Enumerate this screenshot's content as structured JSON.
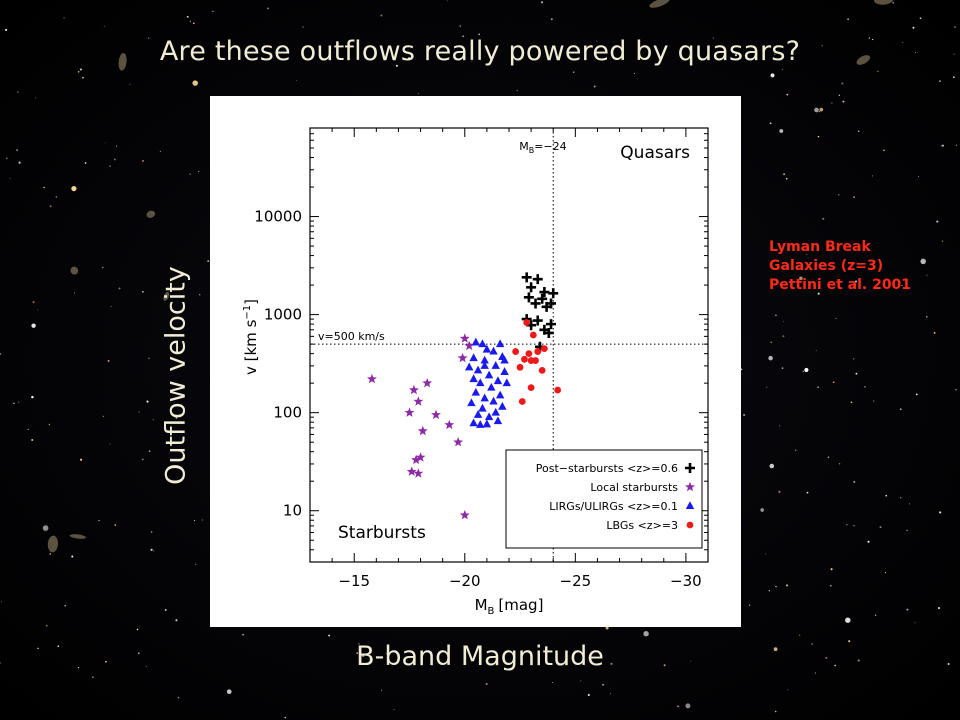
{
  "slide": {
    "title": "Are these outflows really powered by quasars?",
    "y_label": "Outflow velocity",
    "x_label": "B-band Magnitude",
    "note_lines": [
      "Lyman Break",
      "Galaxies (z=3)",
      "Pettini et al. 2001"
    ],
    "note_color": "#ff2a1a",
    "text_color": "#f1ecd5"
  },
  "chart_data": {
    "type": "scatter",
    "xlabel": "M",
    "xlabel_sub": "B",
    "xlabel_unit": "[mag]",
    "ylabel": "v [km s",
    "ylabel_sup": "−1",
    "ylabel_close": "]",
    "xlim": [
      -13,
      -31
    ],
    "ylim": [
      3,
      80000
    ],
    "y_scale": "log",
    "x_ticks": [
      -15,
      -20,
      -25,
      -30
    ],
    "x_tick_labels": [
      "−15",
      "−20",
      "−25",
      "−30"
    ],
    "y_ticks": [
      10,
      100,
      1000,
      10000
    ],
    "y_tick_labels": [
      "10",
      "100",
      "1000",
      "10000"
    ],
    "reference_lines": {
      "vertical": {
        "x": -24,
        "label": "M",
        "label_sub": "B",
        "label_rest": "=−24"
      },
      "horizontal": {
        "y": 500,
        "label": "v=500 km/s"
      }
    },
    "region_labels": [
      "Quasars",
      "Starbursts"
    ],
    "legend_position": "bottom-right",
    "series": [
      {
        "name": "Post−starbursts <z>=0.6",
        "marker": "plus",
        "color": "#000000",
        "points": [
          [
            -22.8,
            2400
          ],
          [
            -23.3,
            2300
          ],
          [
            -23.0,
            1900
          ],
          [
            -23.6,
            1700
          ],
          [
            -24.0,
            1650
          ],
          [
            -22.9,
            1500
          ],
          [
            -23.5,
            1450
          ],
          [
            -23.2,
            1300
          ],
          [
            -23.9,
            1300
          ],
          [
            -23.7,
            1200
          ],
          [
            -22.8,
            900
          ],
          [
            -23.3,
            870
          ],
          [
            -23.9,
            800
          ],
          [
            -23.0,
            780
          ],
          [
            -23.6,
            700
          ],
          [
            -23.8,
            650
          ],
          [
            -23.4,
            470
          ]
        ]
      },
      {
        "name": "Local starbursts",
        "marker": "star",
        "color": "#8e2aa6",
        "points": [
          [
            -15.8,
            220
          ],
          [
            -17.7,
            170
          ],
          [
            -18.3,
            200
          ],
          [
            -17.9,
            130
          ],
          [
            -17.5,
            100
          ],
          [
            -18.7,
            95
          ],
          [
            -19.3,
            75
          ],
          [
            -18.1,
            65
          ],
          [
            -19.7,
            50
          ],
          [
            -18.0,
            35
          ],
          [
            -17.8,
            33
          ],
          [
            -17.6,
            25
          ],
          [
            -17.9,
            24
          ],
          [
            -20.0,
            570
          ],
          [
            -19.9,
            360
          ],
          [
            -20.2,
            480
          ],
          [
            -20.0,
            9
          ]
        ]
      },
      {
        "name": "LIRGs/ULIRGs <z>=0.1",
        "marker": "triangle",
        "color": "#1a1aee",
        "points": [
          [
            -20.5,
            520
          ],
          [
            -20.8,
            500
          ],
          [
            -21.6,
            500
          ],
          [
            -21.3,
            420
          ],
          [
            -21.0,
            440
          ],
          [
            -20.4,
            360
          ],
          [
            -21.7,
            370
          ],
          [
            -20.9,
            340
          ],
          [
            -21.4,
            300
          ],
          [
            -20.2,
            290
          ],
          [
            -20.6,
            270
          ],
          [
            -21.8,
            260
          ],
          [
            -21.1,
            240
          ],
          [
            -20.4,
            220
          ],
          [
            -21.5,
            210
          ],
          [
            -20.7,
            200
          ],
          [
            -21.9,
            200
          ],
          [
            -21.2,
            180
          ],
          [
            -20.5,
            160
          ],
          [
            -21.6,
            150
          ],
          [
            -20.9,
            140
          ],
          [
            -21.3,
            130
          ],
          [
            -20.3,
            125
          ],
          [
            -21.7,
            115
          ],
          [
            -20.8,
            110
          ],
          [
            -21.4,
            100
          ],
          [
            -20.6,
            95
          ],
          [
            -21.1,
            90
          ],
          [
            -20.4,
            78
          ],
          [
            -20.7,
            75
          ],
          [
            -21.0,
            76
          ],
          [
            -21.5,
            82
          ],
          [
            -20.9,
            300
          ],
          [
            -21.8,
            340
          ]
        ]
      },
      {
        "name": "LBGs <z>=3",
        "marker": "circle",
        "color": "#ee1a1a",
        "points": [
          [
            -22.8,
            830
          ],
          [
            -23.1,
            620
          ],
          [
            -22.3,
            420
          ],
          [
            -22.9,
            400
          ],
          [
            -23.3,
            420
          ],
          [
            -23.6,
            450
          ],
          [
            -22.7,
            350
          ],
          [
            -23.0,
            340
          ],
          [
            -23.2,
            340
          ],
          [
            -22.5,
            290
          ],
          [
            -23.5,
            270
          ],
          [
            -23.0,
            180
          ],
          [
            -24.2,
            170
          ],
          [
            -22.6,
            130
          ]
        ]
      }
    ]
  }
}
